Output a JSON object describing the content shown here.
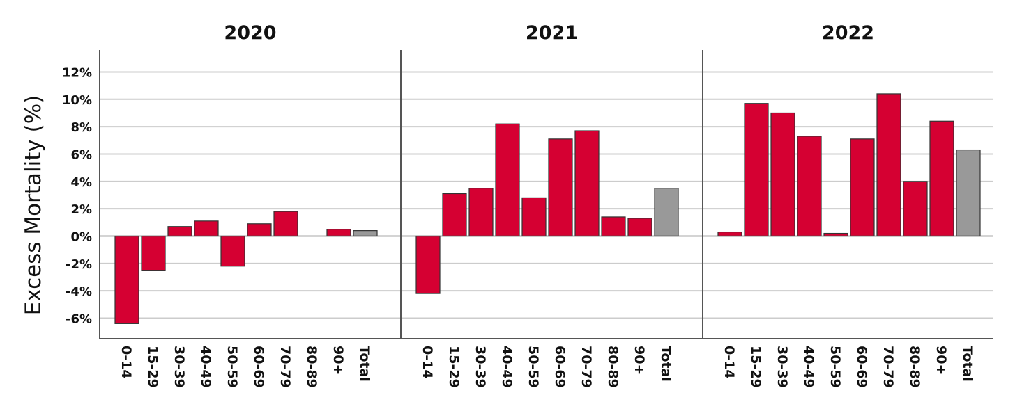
{
  "chart_data": {
    "type": "bar",
    "ylabel": "Excess Mortality (%)",
    "yticks": [
      "-6%",
      "-4%",
      "-2%",
      "0%",
      "2%",
      "4%",
      "6%",
      "8%",
      "10%",
      "12%"
    ],
    "ytick_values": [
      -6,
      -4,
      -2,
      0,
      2,
      4,
      6,
      8,
      10,
      12
    ],
    "ylim": [
      -7.5,
      13.6
    ],
    "grid": true,
    "categories": [
      "0-14",
      "15-29",
      "30-39",
      "40-49",
      "50-59",
      "60-69",
      "70-79",
      "80-89",
      "90+",
      "Total"
    ],
    "colors": {
      "age_group": "#d50032",
      "total": "#999999",
      "bar_outline": "#333333",
      "grid": "#cccccc",
      "axis": "#555555"
    },
    "panels": [
      {
        "title": "2020",
        "values": [
          -6.4,
          -2.5,
          0.7,
          1.1,
          -2.2,
          0.9,
          1.8,
          0.0,
          0.5,
          0.4
        ]
      },
      {
        "title": "2021",
        "values": [
          -4.2,
          3.1,
          3.5,
          8.2,
          2.8,
          7.1,
          7.7,
          1.4,
          1.3,
          3.5
        ]
      },
      {
        "title": "2022",
        "values": [
          0.3,
          9.7,
          9.0,
          7.3,
          0.2,
          7.1,
          10.4,
          4.0,
          8.4,
          6.3
        ]
      }
    ]
  }
}
